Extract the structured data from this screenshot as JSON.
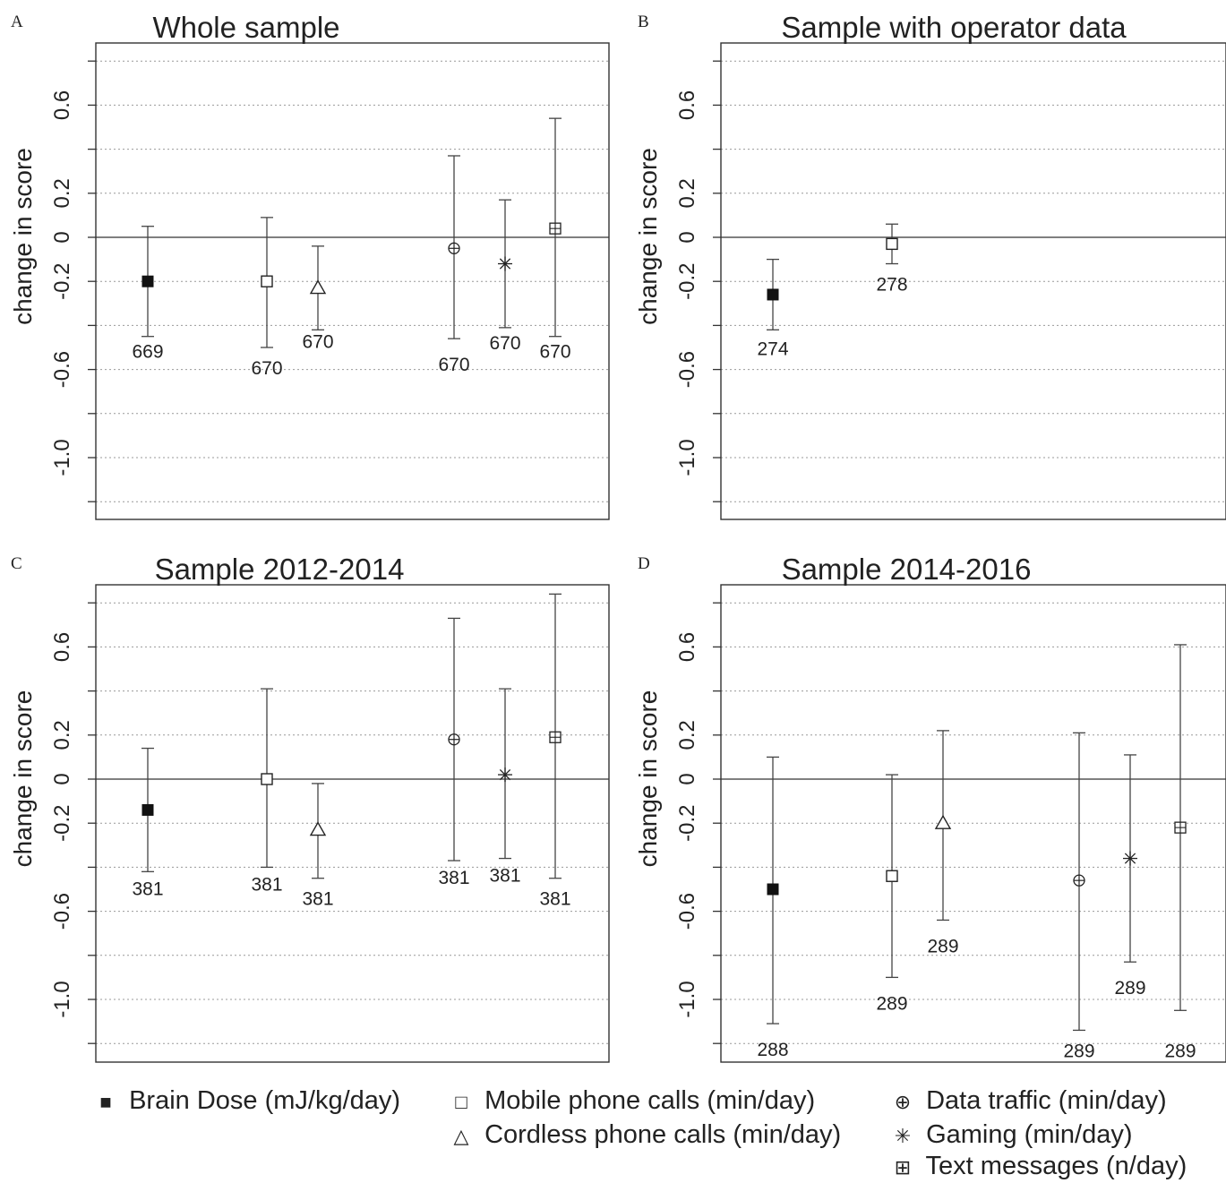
{
  "chart_data": [
    {
      "type": "scatter",
      "panel_label": "A",
      "title": "Whole sample",
      "ylabel": "change in score",
      "ylim": [
        -1.28,
        0.89
      ],
      "yticks": [
        0.6,
        0.2,
        0,
        -0.2,
        -0.6,
        -1.0
      ],
      "ytick_labels": [
        "0.6",
        "0.2",
        "0",
        "-0.2",
        "-0.6",
        "-1.0"
      ],
      "reference_line": 0,
      "grid": "dotted horizontal",
      "points": [
        {
          "series": "Brain Dose (mJ/kg/day)",
          "marker": "filled-square",
          "y": -0.2,
          "lower": -0.45,
          "upper": 0.05,
          "n": "669"
        },
        {
          "series": "Mobile phone calls (min/day)",
          "marker": "open-square",
          "y": -0.2,
          "lower": -0.5,
          "upper": 0.09,
          "n": "670"
        },
        {
          "series": "Cordless phone calls (min/day)",
          "marker": "triangle",
          "y": -0.23,
          "lower": -0.42,
          "upper": -0.04,
          "n": "670"
        },
        {
          "series": "Data traffic (min/day)",
          "marker": "circle-plus",
          "y": -0.05,
          "lower": -0.46,
          "upper": 0.37,
          "n": "670"
        },
        {
          "series": "Gaming (min/day)",
          "marker": "asterisk",
          "y": -0.12,
          "lower": -0.41,
          "upper": 0.17,
          "n": "670"
        },
        {
          "series": "Text messages (n/day)",
          "marker": "square-plus",
          "y": 0.04,
          "lower": -0.45,
          "upper": 0.54,
          "n": "670"
        }
      ]
    },
    {
      "type": "scatter",
      "panel_label": "B",
      "title": "Sample with operator data",
      "ylabel": "change in score",
      "ylim": [
        -1.28,
        0.89
      ],
      "yticks": [
        0.6,
        0.2,
        0,
        -0.2,
        -0.6,
        -1.0
      ],
      "ytick_labels": [
        "0.6",
        "0.2",
        "0",
        "-0.2",
        "-0.6",
        "-1.0"
      ],
      "reference_line": 0,
      "grid": "dotted horizontal",
      "points": [
        {
          "series": "Brain Dose (mJ/kg/day)",
          "marker": "filled-square",
          "y": -0.26,
          "lower": -0.42,
          "upper": -0.1,
          "n": "274"
        },
        {
          "series": "Mobile phone calls (min/day)",
          "marker": "open-square",
          "y": -0.03,
          "lower": -0.12,
          "upper": 0.06,
          "n": "278"
        }
      ]
    },
    {
      "type": "scatter",
      "panel_label": "C",
      "title": "Sample 2012-2014",
      "ylabel": "change in score",
      "ylim": [
        -1.28,
        0.89
      ],
      "yticks": [
        0.6,
        0.2,
        0,
        -0.2,
        -0.6,
        -1.0
      ],
      "ytick_labels": [
        "0.6",
        "0.2",
        "0",
        "-0.2",
        "-0.6",
        "-1.0"
      ],
      "reference_line": 0,
      "grid": "dotted horizontal",
      "points": [
        {
          "series": "Brain Dose (mJ/kg/day)",
          "marker": "filled-square",
          "y": -0.14,
          "lower": -0.42,
          "upper": 0.14,
          "n": "381"
        },
        {
          "series": "Mobile phone calls (min/day)",
          "marker": "open-square",
          "y": 0.0,
          "lower": -0.4,
          "upper": 0.41,
          "n": "381"
        },
        {
          "series": "Cordless phone calls (min/day)",
          "marker": "triangle",
          "y": -0.23,
          "lower": -0.45,
          "upper": -0.02,
          "n": "381"
        },
        {
          "series": "Data traffic (min/day)",
          "marker": "circle-plus",
          "y": 0.18,
          "lower": -0.37,
          "upper": 0.73,
          "n": "381"
        },
        {
          "series": "Gaming (min/day)",
          "marker": "asterisk",
          "y": 0.02,
          "lower": -0.36,
          "upper": 0.41,
          "n": "381"
        },
        {
          "series": "Text messages (n/day)",
          "marker": "square-plus",
          "y": 0.19,
          "lower": -0.45,
          "upper": 0.84,
          "n": "381"
        }
      ]
    },
    {
      "type": "scatter",
      "panel_label": "D",
      "title": "Sample 2014-2016",
      "ylabel": "change in score",
      "ylim": [
        -1.28,
        0.89
      ],
      "yticks": [
        0.6,
        0.2,
        0,
        -0.2,
        -0.6,
        -1.0
      ],
      "ytick_labels": [
        "0.6",
        "0.2",
        "0",
        "-0.2",
        "-0.6",
        "-1.0"
      ],
      "reference_line": 0,
      "grid": "dotted horizontal",
      "points": [
        {
          "series": "Brain Dose (mJ/kg/day)",
          "marker": "filled-square",
          "y": -0.5,
          "lower": -1.11,
          "upper": 0.1,
          "n": "288"
        },
        {
          "series": "Mobile phone calls (min/day)",
          "marker": "open-square",
          "y": -0.44,
          "lower": -0.9,
          "upper": 0.02,
          "n": "289"
        },
        {
          "series": "Cordless phone calls (min/day)",
          "marker": "triangle",
          "y": -0.2,
          "lower": -0.64,
          "upper": 0.22,
          "n": "289"
        },
        {
          "series": "Data traffic (min/day)",
          "marker": "circle-plus",
          "y": -0.46,
          "lower": -1.14,
          "upper": 0.21,
          "n": "289"
        },
        {
          "series": "Gaming (min/day)",
          "marker": "asterisk",
          "y": -0.36,
          "lower": -0.83,
          "upper": 0.11,
          "n": "289"
        },
        {
          "series": "Text messages (n/day)",
          "marker": "square-plus",
          "y": -0.22,
          "lower": -1.05,
          "upper": 0.61,
          "n": "289"
        }
      ]
    }
  ],
  "legend": [
    {
      "marker": "filled-square",
      "symbol": "■",
      "label": "Brain Dose (mJ/kg/day)"
    },
    {
      "marker": "open-square",
      "symbol": "□",
      "label": "Mobile phone calls (min/day)"
    },
    {
      "marker": "triangle",
      "symbol": "△",
      "label": "Cordless phone calls (min/day)"
    },
    {
      "marker": "circle-plus",
      "symbol": "⊕",
      "label": "Data traffic (min/day)"
    },
    {
      "marker": "asterisk",
      "symbol": "✳",
      "label": "Gaming (min/day)"
    },
    {
      "marker": "square-plus",
      "symbol": "⊞",
      "label": "Text messages (n/day)"
    }
  ],
  "legend_placement": "bottom"
}
